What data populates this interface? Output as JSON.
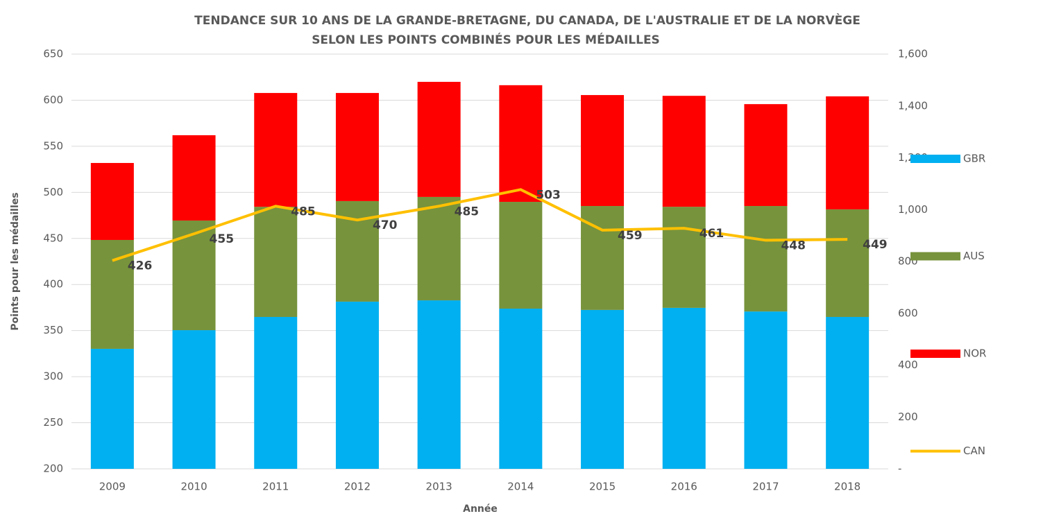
{
  "chart_data": {
    "type": "bar-line",
    "title": [
      "TENDANCE SUR 10 ANS DE LA GRANDE-BRETAGNE, DU CANADA, DE L'AUSTRALIE ET DE LA NORVÈGE",
      "SELON LES POINTS COMBINÉS POUR LES MÉDAILLES"
    ],
    "x_label": "Année",
    "y_label": "Points pour les médailles",
    "categories": [
      "2009",
      "2010",
      "2011",
      "2012",
      "2013",
      "2014",
      "2015",
      "2016",
      "2017",
      "2018"
    ],
    "ylim": [
      200,
      650
    ],
    "yticks": [
      200,
      250,
      300,
      350,
      400,
      450,
      500,
      550,
      600,
      650
    ],
    "y2lim": [
      0,
      1600
    ],
    "y2ticks": [
      {
        "value": 0,
        "label": "-"
      },
      200,
      400,
      600,
      800,
      {
        "value": 1000,
        "label": "1,000"
      },
      {
        "value": 1200,
        "label": "1,200"
      },
      {
        "value": 1400,
        "label": "1,400"
      },
      {
        "value": 1600,
        "label": "1,600"
      }
    ],
    "grid": true,
    "stacked": true,
    "legend": "right",
    "series": [
      {
        "name": "GBR",
        "color": "#00b0f0",
        "kind": "bar",
        "axis": "y2",
        "values": [
          463,
          535,
          586,
          645,
          650,
          618,
          613,
          621,
          607,
          586
        ]
      },
      {
        "name": "AUS",
        "color": "#77933c",
        "kind": "bar",
        "axis": "y2",
        "values": [
          420,
          423,
          425,
          388,
          399,
          412,
          401,
          390,
          407,
          415
        ]
      },
      {
        "name": "NOR",
        "color": "#ff0000",
        "kind": "bar",
        "axis": "y2",
        "values": [
          297,
          329,
          439,
          417,
          444,
          450,
          428,
          428,
          393,
          436
        ]
      },
      {
        "name": "CAN",
        "color": "#ffc000",
        "kind": "line",
        "axis": "y",
        "values": [
          426,
          455,
          485,
          470,
          485,
          503,
          459,
          461,
          448,
          449
        ]
      }
    ]
  }
}
